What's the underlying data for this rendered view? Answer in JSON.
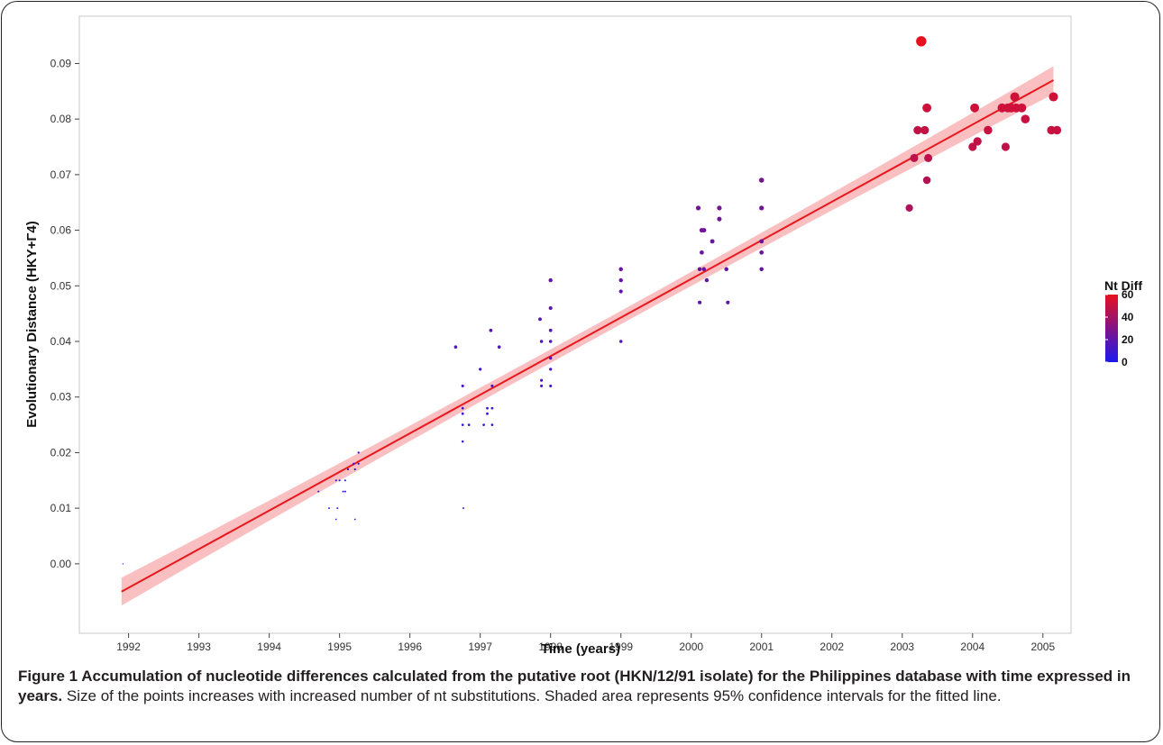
{
  "colors": {
    "fit_line": "#e8191e",
    "ci_band": "#f9b4b5",
    "low": "#1a18f0",
    "high": "#e8101e",
    "panel_border": "#c8c8c8",
    "frame": "#222222"
  },
  "caption": {
    "title": "Figure 1 Accumulation of nucleotide differences calculated from the putative root (HKN/12/91 isolate) for the Philippines database with time expressed in years.",
    "body": " Size of the points increases with increased number of nt substitutions. Shaded area represents 95% confidence intervals for the fitted line."
  },
  "chart_data": {
    "type": "scatter",
    "xlabel": "Time (years)",
    "ylabel": "Evolutionary Distance (HKY+Γ4)",
    "xlim": [
      1991.3,
      2005.4
    ],
    "ylim": [
      -0.0125,
      0.0985
    ],
    "x_ticks": [
      1992,
      1993,
      1994,
      1995,
      1996,
      1997,
      1998,
      1999,
      2000,
      2001,
      2002,
      2003,
      2004,
      2005
    ],
    "y_ticks": [
      0.0,
      0.01,
      0.02,
      0.03,
      0.04,
      0.05,
      0.06,
      0.07,
      0.08,
      0.09
    ],
    "y_tick_labels": [
      "0.00",
      "0.01",
      "0.02",
      "0.03",
      "0.04",
      "0.05",
      "0.06",
      "0.07",
      "0.08",
      "0.09"
    ],
    "grid": false,
    "legend": {
      "title": "Nt Diff",
      "position": "right",
      "range": [
        0,
        60
      ],
      "ticks": [
        0,
        20,
        40,
        60
      ]
    },
    "fit": {
      "x": [
        1991.9,
        2005.15
      ],
      "y": [
        -0.005,
        0.087
      ],
      "ci_halfwidth_ends": 0.0025,
      "ci_halfwidth_center": 0.0012
    },
    "points": [
      {
        "x": 1991.92,
        "y": 0.0,
        "nt": 0
      },
      {
        "x": 1994.7,
        "y": 0.013,
        "nt": 5
      },
      {
        "x": 1994.85,
        "y": 0.01,
        "nt": 4
      },
      {
        "x": 1994.95,
        "y": 0.008,
        "nt": 3
      },
      {
        "x": 1994.97,
        "y": 0.01,
        "nt": 4
      },
      {
        "x": 1994.95,
        "y": 0.015,
        "nt": 6
      },
      {
        "x": 1995.0,
        "y": 0.015,
        "nt": 6
      },
      {
        "x": 1995.05,
        "y": 0.013,
        "nt": 5
      },
      {
        "x": 1995.08,
        "y": 0.015,
        "nt": 6
      },
      {
        "x": 1995.08,
        "y": 0.013,
        "nt": 5
      },
      {
        "x": 1995.12,
        "y": 0.017,
        "nt": 7
      },
      {
        "x": 1995.2,
        "y": 0.018,
        "nt": 7
      },
      {
        "x": 1995.22,
        "y": 0.017,
        "nt": 7
      },
      {
        "x": 1995.22,
        "y": 0.008,
        "nt": 3
      },
      {
        "x": 1995.27,
        "y": 0.02,
        "nt": 8
      },
      {
        "x": 1995.27,
        "y": 0.018,
        "nt": 7
      },
      {
        "x": 1996.65,
        "y": 0.039,
        "nt": 16
      },
      {
        "x": 1996.75,
        "y": 0.032,
        "nt": 13
      },
      {
        "x": 1996.75,
        "y": 0.028,
        "nt": 11
      },
      {
        "x": 1996.75,
        "y": 0.027,
        "nt": 11
      },
      {
        "x": 1996.75,
        "y": 0.025,
        "nt": 10
      },
      {
        "x": 1996.75,
        "y": 0.022,
        "nt": 9
      },
      {
        "x": 1996.76,
        "y": 0.01,
        "nt": 4
      },
      {
        "x": 1996.84,
        "y": 0.025,
        "nt": 10
      },
      {
        "x": 1997.0,
        "y": 0.035,
        "nt": 14
      },
      {
        "x": 1997.05,
        "y": 0.025,
        "nt": 10
      },
      {
        "x": 1997.1,
        "y": 0.028,
        "nt": 11
      },
      {
        "x": 1997.1,
        "y": 0.027,
        "nt": 11
      },
      {
        "x": 1997.15,
        "y": 0.042,
        "nt": 17
      },
      {
        "x": 1997.17,
        "y": 0.032,
        "nt": 13
      },
      {
        "x": 1997.17,
        "y": 0.028,
        "nt": 11
      },
      {
        "x": 1997.17,
        "y": 0.025,
        "nt": 10
      },
      {
        "x": 1997.27,
        "y": 0.039,
        "nt": 16
      },
      {
        "x": 1997.85,
        "y": 0.044,
        "nt": 18
      },
      {
        "x": 1997.87,
        "y": 0.04,
        "nt": 16
      },
      {
        "x": 1997.87,
        "y": 0.033,
        "nt": 13
      },
      {
        "x": 1997.87,
        "y": 0.032,
        "nt": 13
      },
      {
        "x": 1998.0,
        "y": 0.051,
        "nt": 21
      },
      {
        "x": 1998.0,
        "y": 0.046,
        "nt": 19
      },
      {
        "x": 1998.0,
        "y": 0.042,
        "nt": 17
      },
      {
        "x": 1998.0,
        "y": 0.04,
        "nt": 16
      },
      {
        "x": 1998.0,
        "y": 0.037,
        "nt": 15
      },
      {
        "x": 1998.0,
        "y": 0.035,
        "nt": 14
      },
      {
        "x": 1998.0,
        "y": 0.032,
        "nt": 13
      },
      {
        "x": 1999.0,
        "y": 0.053,
        "nt": 22
      },
      {
        "x": 1999.0,
        "y": 0.051,
        "nt": 21
      },
      {
        "x": 1999.0,
        "y": 0.049,
        "nt": 20
      },
      {
        "x": 1999.0,
        "y": 0.04,
        "nt": 16
      },
      {
        "x": 2000.1,
        "y": 0.064,
        "nt": 26
      },
      {
        "x": 2000.12,
        "y": 0.053,
        "nt": 22
      },
      {
        "x": 2000.12,
        "y": 0.047,
        "nt": 19
      },
      {
        "x": 2000.15,
        "y": 0.06,
        "nt": 25
      },
      {
        "x": 2000.15,
        "y": 0.056,
        "nt": 23
      },
      {
        "x": 2000.18,
        "y": 0.053,
        "nt": 22
      },
      {
        "x": 2000.18,
        "y": 0.06,
        "nt": 25
      },
      {
        "x": 2000.22,
        "y": 0.051,
        "nt": 21
      },
      {
        "x": 2000.3,
        "y": 0.058,
        "nt": 24
      },
      {
        "x": 2000.4,
        "y": 0.064,
        "nt": 26
      },
      {
        "x": 2000.4,
        "y": 0.062,
        "nt": 25
      },
      {
        "x": 2000.5,
        "y": 0.053,
        "nt": 22
      },
      {
        "x": 2000.52,
        "y": 0.047,
        "nt": 19
      },
      {
        "x": 2001.0,
        "y": 0.069,
        "nt": 28
      },
      {
        "x": 2001.0,
        "y": 0.064,
        "nt": 26
      },
      {
        "x": 2001.0,
        "y": 0.058,
        "nt": 24
      },
      {
        "x": 2001.0,
        "y": 0.056,
        "nt": 23
      },
      {
        "x": 2001.0,
        "y": 0.053,
        "nt": 22
      },
      {
        "x": 2003.1,
        "y": 0.064,
        "nt": 43
      },
      {
        "x": 2003.17,
        "y": 0.073,
        "nt": 47
      },
      {
        "x": 2003.22,
        "y": 0.078,
        "nt": 49
      },
      {
        "x": 2003.27,
        "y": 0.094,
        "nt": 60
      },
      {
        "x": 2003.32,
        "y": 0.078,
        "nt": 49
      },
      {
        "x": 2003.35,
        "y": 0.082,
        "nt": 52
      },
      {
        "x": 2003.35,
        "y": 0.069,
        "nt": 45
      },
      {
        "x": 2003.37,
        "y": 0.073,
        "nt": 47
      },
      {
        "x": 2004.0,
        "y": 0.075,
        "nt": 48
      },
      {
        "x": 2004.03,
        "y": 0.082,
        "nt": 52
      },
      {
        "x": 2004.07,
        "y": 0.076,
        "nt": 49
      },
      {
        "x": 2004.22,
        "y": 0.078,
        "nt": 50
      },
      {
        "x": 2004.42,
        "y": 0.082,
        "nt": 52
      },
      {
        "x": 2004.47,
        "y": 0.075,
        "nt": 48
      },
      {
        "x": 2004.5,
        "y": 0.082,
        "nt": 52
      },
      {
        "x": 2004.55,
        "y": 0.082,
        "nt": 52
      },
      {
        "x": 2004.6,
        "y": 0.084,
        "nt": 53
      },
      {
        "x": 2004.62,
        "y": 0.082,
        "nt": 52
      },
      {
        "x": 2004.7,
        "y": 0.082,
        "nt": 52
      },
      {
        "x": 2004.75,
        "y": 0.08,
        "nt": 51
      },
      {
        "x": 2005.12,
        "y": 0.078,
        "nt": 50
      },
      {
        "x": 2005.15,
        "y": 0.084,
        "nt": 53
      },
      {
        "x": 2005.2,
        "y": 0.078,
        "nt": 50
      }
    ]
  }
}
